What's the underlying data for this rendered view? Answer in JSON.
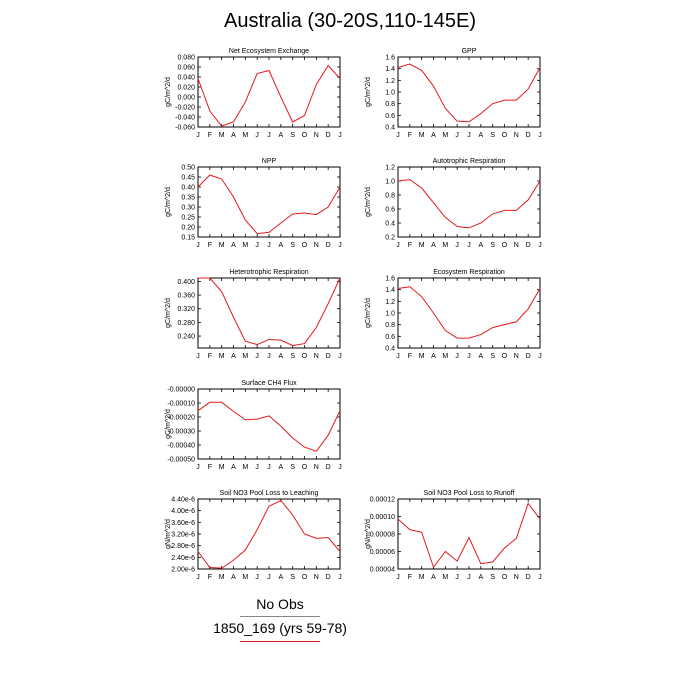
{
  "title": "Australia (30-20S,110-145E)",
  "legend": {
    "no_obs": "No Obs",
    "case_label": "1850_169 (yrs 59-78)",
    "case_color": "#e41a1c",
    "obs_color": "#888888"
  },
  "chart_data": [
    {
      "type": "line",
      "title": "Net Ecosystem Exchange",
      "ylabel": "gC/m^2/d",
      "categories": [
        "J",
        "F",
        "M",
        "A",
        "M",
        "J",
        "J",
        "A",
        "S",
        "O",
        "N",
        "D",
        "J"
      ],
      "ylim": [
        -0.06,
        0.08
      ],
      "yticks": [
        -0.06,
        -0.04,
        -0.02,
        0.0,
        0.02,
        0.04,
        0.06,
        0.08
      ],
      "ytick_labels": [
        "-0.060",
        "-0.040",
        "-0.020",
        "0.000",
        "0.020",
        "0.040",
        "0.060",
        "0.080"
      ],
      "series": [
        {
          "values": [
            0.037,
            -0.028,
            -0.058,
            -0.05,
            -0.01,
            0.047,
            0.053,
            0.0,
            -0.05,
            -0.037,
            0.025,
            0.063,
            0.037
          ]
        }
      ]
    },
    {
      "type": "line",
      "title": "GPP",
      "ylabel": "gC/m^2/d",
      "categories": [
        "J",
        "F",
        "M",
        "A",
        "M",
        "J",
        "J",
        "A",
        "S",
        "O",
        "N",
        "D",
        "J"
      ],
      "ylim": [
        0.4,
        1.6
      ],
      "yticks": [
        0.4,
        0.6,
        0.8,
        1.0,
        1.2,
        1.4,
        1.6
      ],
      "ytick_labels": [
        "0.4",
        "0.6",
        "0.8",
        "1.0",
        "1.2",
        "1.4",
        "1.6"
      ],
      "series": [
        {
          "values": [
            1.42,
            1.48,
            1.37,
            1.1,
            0.72,
            0.5,
            0.49,
            0.63,
            0.8,
            0.86,
            0.86,
            1.05,
            1.42
          ]
        }
      ]
    },
    {
      "type": "line",
      "title": "NPP",
      "ylabel": "gC/m^2/d",
      "categories": [
        "J",
        "F",
        "M",
        "A",
        "M",
        "J",
        "J",
        "A",
        "S",
        "O",
        "N",
        "D",
        "J"
      ],
      "ylim": [
        0.15,
        0.5
      ],
      "yticks": [
        0.15,
        0.2,
        0.25,
        0.3,
        0.35,
        0.4,
        0.45,
        0.5
      ],
      "ytick_labels": [
        "0.15",
        "0.20",
        "0.25",
        "0.30",
        "0.35",
        "0.40",
        "0.45",
        "0.50"
      ],
      "series": [
        {
          "values": [
            0.4,
            0.46,
            0.44,
            0.35,
            0.235,
            0.167,
            0.173,
            0.22,
            0.265,
            0.27,
            0.262,
            0.3,
            0.4
          ]
        }
      ]
    },
    {
      "type": "line",
      "title": "Autotrophic Respiration",
      "ylabel": "gC/m^2/d",
      "categories": [
        "J",
        "F",
        "M",
        "A",
        "M",
        "J",
        "J",
        "A",
        "S",
        "O",
        "N",
        "D",
        "J"
      ],
      "ylim": [
        0.2,
        1.2
      ],
      "yticks": [
        0.2,
        0.4,
        0.6,
        0.8,
        1.0,
        1.2
      ],
      "ytick_labels": [
        "0.2",
        "0.4",
        "0.6",
        "0.8",
        "1.0",
        "1.2"
      ],
      "series": [
        {
          "values": [
            1.0,
            1.02,
            0.9,
            0.69,
            0.48,
            0.35,
            0.33,
            0.4,
            0.53,
            0.58,
            0.58,
            0.73,
            1.0
          ]
        }
      ]
    },
    {
      "type": "line",
      "title": "Heterotrophic Respiration",
      "ylabel": "gC/m^2/d",
      "categories": [
        "J",
        "F",
        "M",
        "A",
        "M",
        "J",
        "J",
        "A",
        "S",
        "O",
        "N",
        "D",
        "J"
      ],
      "ylim": [
        0.205,
        0.41
      ],
      "yticks": [
        0.24,
        0.28,
        0.32,
        0.36,
        0.4
      ],
      "ytick_labels": [
        "0.240",
        "0.280",
        "0.320",
        "0.360",
        "0.400"
      ],
      "series": [
        {
          "values": [
            0.41,
            0.41,
            0.37,
            0.295,
            0.225,
            0.215,
            0.23,
            0.228,
            0.212,
            0.218,
            0.265,
            0.335,
            0.41
          ]
        }
      ]
    },
    {
      "type": "line",
      "title": "Ecosystem Respiration",
      "ylabel": "gC/m^2/d",
      "categories": [
        "J",
        "F",
        "M",
        "A",
        "M",
        "J",
        "J",
        "A",
        "S",
        "O",
        "N",
        "D",
        "J"
      ],
      "ylim": [
        0.4,
        1.6
      ],
      "yticks": [
        0.4,
        0.6,
        0.8,
        1.0,
        1.2,
        1.4,
        1.6
      ],
      "ytick_labels": [
        "0.4",
        "0.6",
        "0.8",
        "1.0",
        "1.2",
        "1.4",
        "1.6"
      ],
      "series": [
        {
          "values": [
            1.42,
            1.45,
            1.28,
            1.0,
            0.7,
            0.57,
            0.57,
            0.63,
            0.75,
            0.8,
            0.85,
            1.07,
            1.42
          ]
        }
      ]
    },
    {
      "type": "line",
      "title": "Surface CH4 Flux",
      "ylabel": "gC/m^2/d",
      "categories": [
        "J",
        "F",
        "M",
        "A",
        "M",
        "J",
        "J",
        "A",
        "S",
        "O",
        "N",
        "D",
        "J"
      ],
      "ylim": [
        -0.0005,
        0.0
      ],
      "yticks": [
        -0.0005,
        -0.0004,
        -0.0003,
        -0.0002,
        -0.0001,
        0.0
      ],
      "ytick_labels": [
        "-0.00050",
        "-0.00040",
        "-0.00030",
        "-0.00020",
        "-0.00010",
        "-0.00000"
      ],
      "series": [
        {
          "values": [
            -0.000155,
            -9.5e-05,
            -9.5e-05,
            -0.00016,
            -0.00022,
            -0.000215,
            -0.000192,
            -0.000265,
            -0.00035,
            -0.000415,
            -0.000445,
            -0.00033,
            -0.000155
          ]
        }
      ]
    },
    {
      "type": "line",
      "title": "Soil NO3 Pool Loss to Leaching",
      "ylabel": "gN/m^2/d",
      "categories": [
        "J",
        "F",
        "M",
        "A",
        "M",
        "J",
        "J",
        "A",
        "S",
        "O",
        "N",
        "D",
        "J"
      ],
      "ylim": [
        2e-06,
        4.4e-06
      ],
      "yticks": [
        2e-06,
        2.4e-06,
        2.8e-06,
        3.2e-06,
        3.6e-06,
        4e-06,
        4.4e-06
      ],
      "ytick_labels": [
        "2.00e-6",
        "2.40e-6",
        "2.80e-6",
        "3.20e-6",
        "3.60e-6",
        "4.00e-6",
        "4.40e-6"
      ],
      "series": [
        {
          "values": [
            2.6e-06,
            2.05e-06,
            2.03e-06,
            2.3e-06,
            2.65e-06,
            3.35e-06,
            4.15e-06,
            4.35e-06,
            3.85e-06,
            3.2e-06,
            3.05e-06,
            3.08e-06,
            2.6e-06
          ]
        }
      ]
    },
    {
      "type": "line",
      "title": "Soil NO3 Pool Loss to Runoff",
      "ylabel": "gN/m^2/d",
      "categories": [
        "J",
        "F",
        "M",
        "A",
        "M",
        "J",
        "J",
        "A",
        "S",
        "O",
        "N",
        "D",
        "J"
      ],
      "ylim": [
        4e-05,
        0.00012
      ],
      "yticks": [
        4e-05,
        6e-05,
        8e-05,
        0.0001,
        0.00012
      ],
      "ytick_labels": [
        "0.00004",
        "0.00006",
        "0.00008",
        "0.00010",
        "0.00012"
      ],
      "series": [
        {
          "values": [
            9.7e-05,
            8.5e-05,
            8.2e-05,
            4.2e-05,
            6e-05,
            4.9e-05,
            7.6e-05,
            4.6e-05,
            4.8e-05,
            6.4e-05,
            7.5e-05,
            0.000115,
            9.7e-05
          ]
        }
      ]
    }
  ]
}
